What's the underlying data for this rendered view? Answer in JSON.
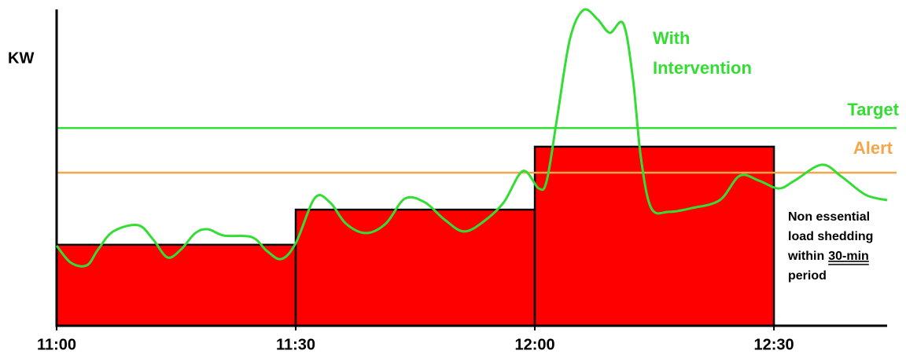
{
  "chart_data": {
    "type": "line",
    "ylabel": "KW",
    "xlim": [
      0,
      104.2
    ],
    "ylim": [
      0,
      100
    ],
    "xticks": [
      {
        "value": 0,
        "label": "11:00"
      },
      {
        "value": 30,
        "label": "11:30"
      },
      {
        "value": 60,
        "label": "12:00"
      },
      {
        "value": 90,
        "label": "12:30"
      }
    ],
    "bars": {
      "bins": [
        0,
        30,
        60,
        90
      ],
      "values": [
        25.6,
        36.7,
        56.6
      ],
      "color": "#ff0000"
    },
    "series": [
      {
        "name": "With Intervention",
        "color": "#33dd33",
        "x": [
          0,
          1.8,
          3.8,
          5.2,
          7.1,
          10.2,
          12.1,
          13.9,
          15.6,
          17.4,
          19.0,
          21.0,
          24.5,
          26.4,
          28.2,
          30.0,
          32.4,
          34.3,
          36.3,
          38.8,
          41.3,
          43.7,
          46.2,
          48.7,
          51.1,
          53.6,
          56.1,
          58.5,
          60.5,
          61.5,
          62.8,
          64.4,
          66.1,
          67.9,
          69.4,
          71.1,
          72.3,
          73.3,
          74.6,
          76.8,
          79.7,
          83.2,
          85.7,
          88.1,
          90.6,
          92.6,
          96.0,
          98.5,
          101.5,
          104.2
        ],
        "values": [
          25.3,
          19.9,
          19.1,
          24.1,
          29.8,
          31.8,
          27.3,
          21.6,
          24.1,
          29.3,
          30.5,
          28.5,
          28.0,
          23.6,
          21.1,
          26.1,
          40.4,
          39.0,
          32.3,
          29.3,
          32.3,
          40.2,
          39.0,
          33.5,
          29.8,
          33.0,
          39.0,
          48.9,
          43.4,
          45.9,
          65.8,
          90.6,
          99.8,
          96.8,
          92.6,
          95.5,
          78.2,
          53.3,
          37.2,
          36.0,
          37.2,
          39.7,
          47.4,
          45.9,
          43.4,
          45.9,
          50.9,
          47.1,
          41.4,
          39.7
        ]
      }
    ],
    "reference_lines": [
      {
        "name": "Target",
        "value": 62.5,
        "color": "#33dd33"
      },
      {
        "name": "Alert",
        "value": 48.4,
        "color": "#f5a54a"
      }
    ],
    "annotation": [
      "Non essential",
      "load shedding",
      "within",
      "30-min",
      "period"
    ]
  }
}
